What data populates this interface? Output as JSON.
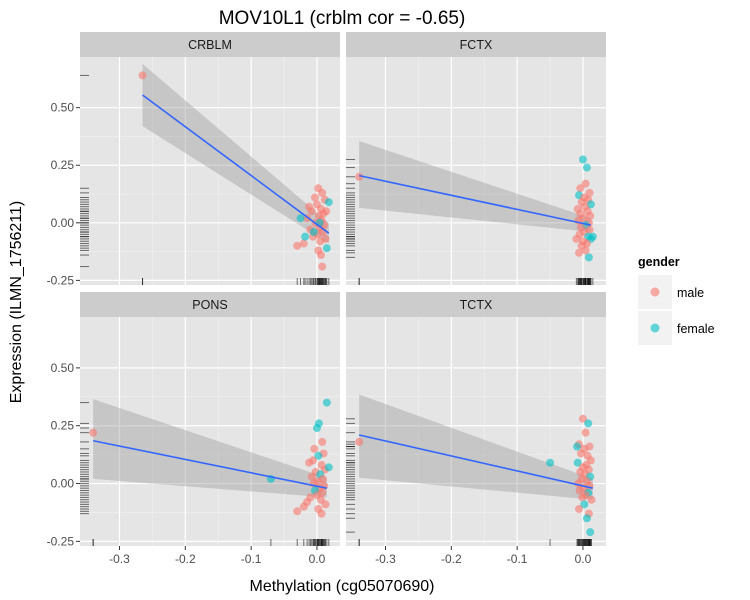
{
  "chart_data": {
    "type": "scatter",
    "title": "MOV10L1 (crblm cor = -0.65)",
    "xlabel": "Methylation (cg05070690)",
    "ylabel": "Expression (ILMN_1756211)",
    "xlim": [
      -0.36,
      0.035
    ],
    "ylim": [
      -0.27,
      0.72
    ],
    "x_ticks": [
      -0.3,
      -0.2,
      -0.1,
      0.0
    ],
    "x_tick_labels": [
      "-0.3",
      "-0.2",
      "-0.1",
      "0.0"
    ],
    "y_ticks": [
      -0.25,
      0.0,
      0.25,
      0.5
    ],
    "y_tick_labels": [
      "-0.25",
      "0.00",
      "0.25",
      "0.50"
    ],
    "legend": {
      "title": "gender",
      "position": "right",
      "entries": [
        {
          "label": "male",
          "color": "#F8766D"
        },
        {
          "label": "female",
          "color": "#00BFC4"
        }
      ]
    },
    "colors": {
      "male": "#F8766D",
      "female": "#00BFC4",
      "fit_line": "#3366FF",
      "ci_band": "#999999",
      "panel_bg": "#E5E5E5",
      "strip_bg": "#CCCCCC",
      "grid": "#FFFFFF"
    },
    "panels": [
      {
        "name": "CRBLM",
        "fit": {
          "x0": -0.265,
          "y0": 0.555,
          "x1": 0.018,
          "y1": -0.045
        },
        "ci": {
          "upper": [
            -0.265,
            0.69,
            0.018,
            0.0
          ],
          "lower": [
            -0.265,
            0.42,
            0.018,
            -0.09
          ]
        },
        "points": [
          {
            "x": -0.265,
            "y": 0.64,
            "g": "male"
          },
          {
            "x": 0.002,
            "y": 0.15,
            "g": "male"
          },
          {
            "x": 0.008,
            "y": 0.13,
            "g": "male"
          },
          {
            "x": -0.003,
            "y": 0.11,
            "g": "male"
          },
          {
            "x": 0.012,
            "y": 0.1,
            "g": "male"
          },
          {
            "x": 0.0,
            "y": 0.08,
            "g": "male"
          },
          {
            "x": 0.006,
            "y": 0.06,
            "g": "male"
          },
          {
            "x": -0.008,
            "y": 0.05,
            "g": "male"
          },
          {
            "x": 0.01,
            "y": 0.04,
            "g": "male"
          },
          {
            "x": 0.003,
            "y": 0.03,
            "g": "male"
          },
          {
            "x": -0.015,
            "y": 0.02,
            "g": "male"
          },
          {
            "x": 0.007,
            "y": 0.01,
            "g": "male"
          },
          {
            "x": -0.002,
            "y": 0.0,
            "g": "male"
          },
          {
            "x": 0.011,
            "y": -0.01,
            "g": "male"
          },
          {
            "x": 0.004,
            "y": -0.02,
            "g": "male"
          },
          {
            "x": -0.01,
            "y": -0.03,
            "g": "male"
          },
          {
            "x": 0.009,
            "y": -0.04,
            "g": "male"
          },
          {
            "x": 0.001,
            "y": -0.05,
            "g": "male"
          },
          {
            "x": -0.006,
            "y": -0.06,
            "g": "male"
          },
          {
            "x": 0.013,
            "y": -0.07,
            "g": "male"
          },
          {
            "x": 0.005,
            "y": -0.08,
            "g": "male"
          },
          {
            "x": -0.02,
            "y": -0.09,
            "g": "male"
          },
          {
            "x": -0.03,
            "y": -0.1,
            "g": "male"
          },
          {
            "x": 0.002,
            "y": -0.12,
            "g": "male"
          },
          {
            "x": 0.006,
            "y": -0.14,
            "g": "male"
          },
          {
            "x": 0.008,
            "y": -0.19,
            "g": "male"
          },
          {
            "x": -0.012,
            "y": 0.07,
            "g": "male"
          },
          {
            "x": 0.014,
            "y": 0.05,
            "g": "male"
          },
          {
            "x": 0.018,
            "y": 0.09,
            "g": "female"
          },
          {
            "x": -0.025,
            "y": 0.02,
            "g": "female"
          },
          {
            "x": 0.004,
            "y": 0.0,
            "g": "female"
          },
          {
            "x": -0.005,
            "y": -0.04,
            "g": "female"
          },
          {
            "x": 0.015,
            "y": -0.11,
            "g": "female"
          },
          {
            "x": -0.018,
            "y": -0.06,
            "g": "female"
          }
        ]
      },
      {
        "name": "FCTX",
        "fit": {
          "x0": -0.34,
          "y0": 0.205,
          "x1": 0.012,
          "y1": -0.01
        },
        "ci": {
          "upper": [
            -0.34,
            0.355,
            0.012,
            0.02
          ],
          "lower": [
            -0.34,
            0.065,
            0.012,
            -0.04
          ]
        },
        "points": [
          {
            "x": -0.34,
            "y": 0.2,
            "g": "male"
          },
          {
            "x": 0.006,
            "y": 0.24,
            "g": "female"
          },
          {
            "x": 0.0,
            "y": 0.275,
            "g": "female"
          },
          {
            "x": 0.004,
            "y": 0.17,
            "g": "male"
          },
          {
            "x": -0.004,
            "y": 0.15,
            "g": "male"
          },
          {
            "x": 0.01,
            "y": 0.13,
            "g": "male"
          },
          {
            "x": -0.006,
            "y": 0.12,
            "g": "female"
          },
          {
            "x": 0.002,
            "y": 0.11,
            "g": "male"
          },
          {
            "x": 0.008,
            "y": 0.1,
            "g": "male"
          },
          {
            "x": -0.002,
            "y": 0.09,
            "g": "male"
          },
          {
            "x": 0.012,
            "y": 0.08,
            "g": "female"
          },
          {
            "x": 0.003,
            "y": 0.07,
            "g": "male"
          },
          {
            "x": -0.008,
            "y": 0.06,
            "g": "male"
          },
          {
            "x": 0.007,
            "y": 0.05,
            "g": "male"
          },
          {
            "x": -0.004,
            "y": 0.04,
            "g": "male"
          },
          {
            "x": 0.011,
            "y": 0.03,
            "g": "male"
          },
          {
            "x": 0.001,
            "y": 0.02,
            "g": "male"
          },
          {
            "x": -0.007,
            "y": 0.01,
            "g": "male"
          },
          {
            "x": 0.009,
            "y": 0.0,
            "g": "male"
          },
          {
            "x": 0.004,
            "y": -0.01,
            "g": "female"
          },
          {
            "x": -0.003,
            "y": -0.02,
            "g": "male"
          },
          {
            "x": 0.01,
            "y": -0.03,
            "g": "male"
          },
          {
            "x": 0.002,
            "y": -0.04,
            "g": "male"
          },
          {
            "x": -0.005,
            "y": -0.05,
            "g": "male"
          },
          {
            "x": 0.008,
            "y": -0.06,
            "g": "female"
          },
          {
            "x": 0.012,
            "y": -0.07,
            "g": "female"
          },
          {
            "x": 0.0,
            "y": -0.08,
            "g": "male"
          },
          {
            "x": 0.006,
            "y": -0.09,
            "g": "male"
          },
          {
            "x": -0.002,
            "y": -0.1,
            "g": "male"
          },
          {
            "x": 0.004,
            "y": -0.12,
            "g": "male"
          },
          {
            "x": 0.009,
            "y": -0.15,
            "g": "female"
          },
          {
            "x": -0.006,
            "y": -0.13,
            "g": "male"
          },
          {
            "x": 0.015,
            "y": -0.06,
            "g": "female"
          },
          {
            "x": -0.01,
            "y": -0.07,
            "g": "male"
          }
        ]
      },
      {
        "name": "PONS",
        "fit": {
          "x0": -0.34,
          "y0": 0.185,
          "x1": 0.015,
          "y1": -0.02
        },
        "ci": {
          "upper": [
            -0.34,
            0.365,
            0.015,
            0.025
          ],
          "lower": [
            -0.34,
            0.02,
            0.015,
            -0.06
          ]
        },
        "points": [
          {
            "x": -0.34,
            "y": 0.22,
            "g": "male"
          },
          {
            "x": -0.07,
            "y": 0.02,
            "g": "female"
          },
          {
            "x": 0.015,
            "y": 0.35,
            "g": "female"
          },
          {
            "x": 0.003,
            "y": 0.26,
            "g": "female"
          },
          {
            "x": 0.0,
            "y": 0.24,
            "g": "female"
          },
          {
            "x": 0.008,
            "y": 0.18,
            "g": "male"
          },
          {
            "x": -0.004,
            "y": 0.15,
            "g": "male"
          },
          {
            "x": 0.01,
            "y": 0.13,
            "g": "male"
          },
          {
            "x": 0.002,
            "y": 0.12,
            "g": "female"
          },
          {
            "x": -0.006,
            "y": 0.1,
            "g": "male"
          },
          {
            "x": 0.007,
            "y": 0.08,
            "g": "male"
          },
          {
            "x": 0.012,
            "y": 0.06,
            "g": "male"
          },
          {
            "x": -0.002,
            "y": 0.05,
            "g": "male"
          },
          {
            "x": 0.005,
            "y": 0.04,
            "g": "female"
          },
          {
            "x": -0.008,
            "y": 0.03,
            "g": "male"
          },
          {
            "x": 0.009,
            "y": 0.02,
            "g": "male"
          },
          {
            "x": 0.001,
            "y": 0.01,
            "g": "male"
          },
          {
            "x": -0.005,
            "y": 0.0,
            "g": "male"
          },
          {
            "x": 0.011,
            "y": -0.01,
            "g": "male"
          },
          {
            "x": 0.004,
            "y": -0.02,
            "g": "male"
          },
          {
            "x": -0.003,
            "y": -0.03,
            "g": "female"
          },
          {
            "x": 0.008,
            "y": -0.04,
            "g": "male"
          },
          {
            "x": 0.0,
            "y": -0.05,
            "g": "male"
          },
          {
            "x": -0.01,
            "y": -0.06,
            "g": "male"
          },
          {
            "x": 0.006,
            "y": -0.07,
            "g": "male"
          },
          {
            "x": -0.015,
            "y": -0.08,
            "g": "male"
          },
          {
            "x": 0.013,
            "y": -0.09,
            "g": "male"
          },
          {
            "x": -0.02,
            "y": -0.1,
            "g": "male"
          },
          {
            "x": 0.002,
            "y": -0.11,
            "g": "male"
          },
          {
            "x": -0.03,
            "y": -0.12,
            "g": "male"
          },
          {
            "x": 0.007,
            "y": -0.13,
            "g": "male"
          },
          {
            "x": 0.018,
            "y": 0.07,
            "g": "female"
          },
          {
            "x": -0.012,
            "y": 0.09,
            "g": "male"
          }
        ]
      },
      {
        "name": "TCTX",
        "fit": {
          "x0": -0.34,
          "y0": 0.21,
          "x1": 0.015,
          "y1": -0.02
        },
        "ci": {
          "upper": [
            -0.34,
            0.385,
            0.015,
            0.02
          ],
          "lower": [
            -0.34,
            0.025,
            0.015,
            -0.07
          ]
        },
        "points": [
          {
            "x": -0.34,
            "y": 0.18,
            "g": "male"
          },
          {
            "x": -0.05,
            "y": 0.09,
            "g": "female"
          },
          {
            "x": 0.0,
            "y": 0.28,
            "g": "male"
          },
          {
            "x": 0.008,
            "y": 0.26,
            "g": "female"
          },
          {
            "x": 0.004,
            "y": 0.22,
            "g": "male"
          },
          {
            "x": -0.006,
            "y": 0.17,
            "g": "male"
          },
          {
            "x": 0.01,
            "y": 0.16,
            "g": "male"
          },
          {
            "x": 0.002,
            "y": 0.15,
            "g": "male"
          },
          {
            "x": -0.003,
            "y": 0.13,
            "g": "male"
          },
          {
            "x": 0.007,
            "y": 0.12,
            "g": "male"
          },
          {
            "x": 0.012,
            "y": 0.1,
            "g": "male"
          },
          {
            "x": -0.008,
            "y": 0.09,
            "g": "female"
          },
          {
            "x": 0.005,
            "y": 0.08,
            "g": "male"
          },
          {
            "x": 0.0,
            "y": 0.07,
            "g": "male"
          },
          {
            "x": 0.009,
            "y": 0.06,
            "g": "male"
          },
          {
            "x": -0.004,
            "y": 0.05,
            "g": "male"
          },
          {
            "x": 0.003,
            "y": 0.04,
            "g": "male"
          },
          {
            "x": 0.011,
            "y": 0.03,
            "g": "female"
          },
          {
            "x": -0.002,
            "y": 0.02,
            "g": "male"
          },
          {
            "x": 0.006,
            "y": 0.01,
            "g": "male"
          },
          {
            "x": -0.007,
            "y": 0.0,
            "g": "male"
          },
          {
            "x": 0.01,
            "y": -0.01,
            "g": "male"
          },
          {
            "x": 0.001,
            "y": -0.02,
            "g": "male"
          },
          {
            "x": -0.005,
            "y": -0.03,
            "g": "male"
          },
          {
            "x": 0.008,
            "y": -0.04,
            "g": "female"
          },
          {
            "x": 0.004,
            "y": -0.05,
            "g": "male"
          },
          {
            "x": -0.001,
            "y": -0.06,
            "g": "male"
          },
          {
            "x": 0.013,
            "y": -0.07,
            "g": "male"
          },
          {
            "x": 0.002,
            "y": -0.09,
            "g": "female"
          },
          {
            "x": -0.006,
            "y": -0.11,
            "g": "male"
          },
          {
            "x": 0.009,
            "y": -0.13,
            "g": "male"
          },
          {
            "x": 0.006,
            "y": -0.15,
            "g": "female"
          },
          {
            "x": 0.011,
            "y": -0.21,
            "g": "female"
          },
          {
            "x": -0.009,
            "y": 0.16,
            "g": "female"
          }
        ]
      }
    ]
  }
}
